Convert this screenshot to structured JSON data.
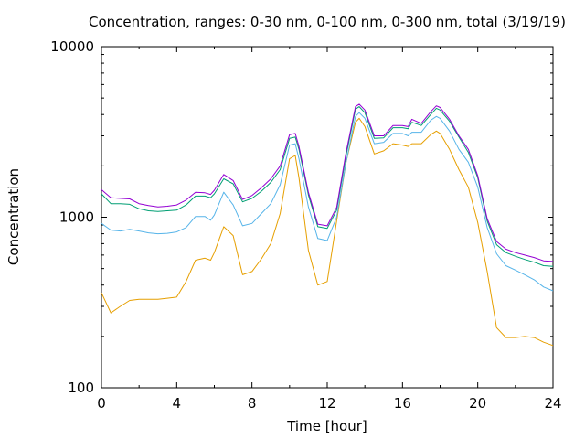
{
  "chart_data": {
    "type": "line",
    "title": "Concentration, ranges: 0-30 nm, 0-100 nm, 0-300 nm, total (3/19/19)",
    "xlabel": "Time [hour]",
    "ylabel": "Concentration",
    "xlim": [
      0,
      24
    ],
    "ylim": [
      100,
      10000
    ],
    "yscale": "log",
    "xticks": [
      0,
      4,
      8,
      12,
      16,
      20,
      24
    ],
    "yticks": [
      100,
      1000,
      10000
    ],
    "ytick_labels": [
      "100",
      "1000",
      "10000"
    ],
    "grid": false,
    "x": [
      0,
      0.5,
      1,
      1.5,
      2,
      2.5,
      3,
      3.5,
      4,
      4.5,
      5,
      5.5,
      5.8,
      6,
      6.5,
      7,
      7.5,
      8,
      8.5,
      9,
      9.5,
      10,
      10.3,
      10.5,
      11,
      11.5,
      12,
      12.5,
      13,
      13.5,
      13.7,
      14,
      14.5,
      15,
      15.5,
      16,
      16.3,
      16.5,
      17,
      17.5,
      17.8,
      18,
      18.5,
      19,
      19.5,
      20,
      20.5,
      21,
      21.5,
      22,
      22.5,
      23,
      23.5,
      24
    ],
    "series": [
      {
        "color": "#e69f00",
        "values": [
          360,
          275,
          300,
          325,
          330,
          330,
          330,
          335,
          340,
          420,
          560,
          575,
          560,
          620,
          880,
          780,
          460,
          480,
          570,
          700,
          1050,
          2200,
          2300,
          1700,
          640,
          400,
          420,
          950,
          2100,
          3600,
          3800,
          3400,
          2350,
          2450,
          2700,
          2650,
          2600,
          2700,
          2700,
          3050,
          3200,
          3100,
          2500,
          1900,
          1500,
          930,
          480,
          225,
          197,
          197,
          200,
          197,
          185,
          177
        ]
      },
      {
        "color": "#56b4e9",
        "values": [
          920,
          840,
          830,
          850,
          830,
          810,
          800,
          805,
          820,
          870,
          1010,
          1010,
          960,
          1030,
          1400,
          1180,
          890,
          920,
          1050,
          1200,
          1550,
          2650,
          2700,
          2200,
          1150,
          750,
          730,
          1000,
          2100,
          3900,
          4100,
          3800,
          2700,
          2750,
          3100,
          3100,
          3000,
          3150,
          3150,
          3700,
          3900,
          3800,
          3200,
          2500,
          2100,
          1500,
          870,
          610,
          520,
          490,
          460,
          430,
          390,
          370
        ]
      },
      {
        "color": "#009e73",
        "values": [
          1370,
          1200,
          1200,
          1190,
          1120,
          1090,
          1080,
          1090,
          1100,
          1180,
          1330,
          1330,
          1300,
          1370,
          1680,
          1570,
          1230,
          1290,
          1420,
          1600,
          1900,
          2900,
          2950,
          2500,
          1350,
          880,
          860,
          1100,
          2300,
          4300,
          4450,
          4100,
          2900,
          2920,
          3350,
          3350,
          3300,
          3600,
          3450,
          4000,
          4350,
          4250,
          3650,
          2950,
          2400,
          1700,
          950,
          690,
          620,
          590,
          565,
          545,
          520,
          515
        ]
      },
      {
        "color": "#9400d3",
        "values": [
          1450,
          1300,
          1290,
          1280,
          1200,
          1170,
          1150,
          1160,
          1180,
          1260,
          1400,
          1390,
          1360,
          1440,
          1780,
          1640,
          1270,
          1340,
          1490,
          1680,
          2000,
          3050,
          3100,
          2600,
          1400,
          910,
          890,
          1140,
          2400,
          4450,
          4600,
          4250,
          3000,
          3000,
          3450,
          3450,
          3400,
          3750,
          3550,
          4150,
          4500,
          4400,
          3750,
          3000,
          2500,
          1750,
          980,
          720,
          650,
          620,
          600,
          580,
          555,
          550
        ]
      }
    ]
  }
}
